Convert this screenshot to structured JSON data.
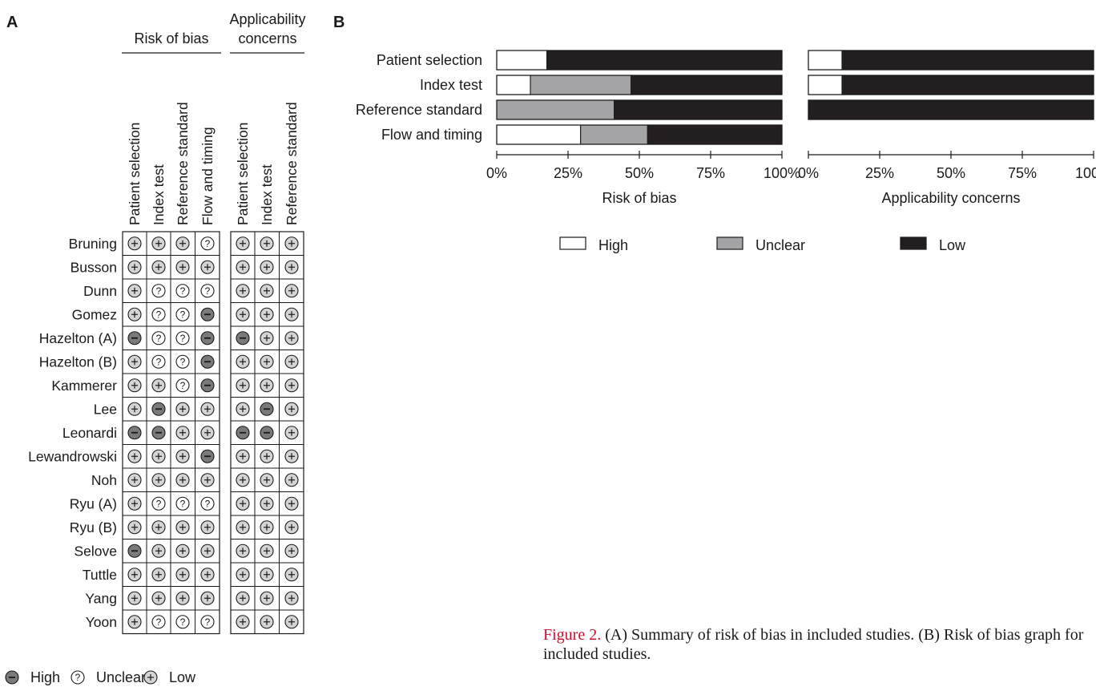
{
  "panel_a": {
    "label": "A",
    "group_rob": "Risk of bias",
    "group_app_line1": "Applicability",
    "group_app_line2": "concerns",
    "rob_columns": [
      "Patient selection",
      "Index test",
      "Reference standard",
      "Flow and timing"
    ],
    "app_columns": [
      "Patient selection",
      "Index test",
      "Reference standard"
    ],
    "studies": [
      {
        "name": "Bruning",
        "rob": [
          "L",
          "L",
          "L",
          "U"
        ],
        "app": [
          "L",
          "L",
          "L"
        ]
      },
      {
        "name": "Busson",
        "rob": [
          "L",
          "L",
          "L",
          "L"
        ],
        "app": [
          "L",
          "L",
          "L"
        ]
      },
      {
        "name": "Dunn",
        "rob": [
          "L",
          "U",
          "U",
          "U"
        ],
        "app": [
          "L",
          "L",
          "L"
        ]
      },
      {
        "name": "Gomez",
        "rob": [
          "L",
          "U",
          "U",
          "H"
        ],
        "app": [
          "L",
          "L",
          "L"
        ]
      },
      {
        "name": "Hazelton (A)",
        "rob": [
          "H",
          "U",
          "U",
          "H"
        ],
        "app": [
          "H",
          "L",
          "L"
        ]
      },
      {
        "name": "Hazelton (B)",
        "rob": [
          "L",
          "U",
          "U",
          "H"
        ],
        "app": [
          "L",
          "L",
          "L"
        ]
      },
      {
        "name": "Kammerer",
        "rob": [
          "L",
          "L",
          "U",
          "H"
        ],
        "app": [
          "L",
          "L",
          "L"
        ]
      },
      {
        "name": "Lee",
        "rob": [
          "L",
          "H",
          "L",
          "L"
        ],
        "app": [
          "L",
          "H",
          "L"
        ]
      },
      {
        "name": "Leonardi",
        "rob": [
          "H",
          "H",
          "L",
          "L"
        ],
        "app": [
          "H",
          "H",
          "L"
        ]
      },
      {
        "name": "Lewandrowski",
        "rob": [
          "L",
          "L",
          "L",
          "H"
        ],
        "app": [
          "L",
          "L",
          "L"
        ]
      },
      {
        "name": "Noh",
        "rob": [
          "L",
          "L",
          "L",
          "L"
        ],
        "app": [
          "L",
          "L",
          "L"
        ]
      },
      {
        "name": "Ryu (A)",
        "rob": [
          "L",
          "U",
          "U",
          "U"
        ],
        "app": [
          "L",
          "L",
          "L"
        ]
      },
      {
        "name": "Ryu (B)",
        "rob": [
          "L",
          "L",
          "L",
          "L"
        ],
        "app": [
          "L",
          "L",
          "L"
        ]
      },
      {
        "name": "Selove",
        "rob": [
          "H",
          "L",
          "L",
          "L"
        ],
        "app": [
          "L",
          "L",
          "L"
        ]
      },
      {
        "name": "Tuttle",
        "rob": [
          "L",
          "L",
          "L",
          "L"
        ],
        "app": [
          "L",
          "L",
          "L"
        ]
      },
      {
        "name": "Yang",
        "rob": [
          "L",
          "L",
          "L",
          "L"
        ],
        "app": [
          "L",
          "L",
          "L"
        ]
      },
      {
        "name": "Yoon",
        "rob": [
          "L",
          "U",
          "U",
          "U"
        ],
        "app": [
          "L",
          "L",
          "L"
        ]
      }
    ],
    "legend": [
      {
        "key": "H",
        "label": "High"
      },
      {
        "key": "U",
        "label": "Unclear"
      },
      {
        "key": "L",
        "label": "Low"
      }
    ]
  },
  "panel_b": {
    "label": "B",
    "legend": [
      {
        "key": "high",
        "label": "High"
      },
      {
        "key": "unclear",
        "label": "Unclear"
      },
      {
        "key": "low",
        "label": "Low"
      }
    ]
  },
  "colors": {
    "high_symbol": "#7a7a7a",
    "low_symbol": "#d4d4d4",
    "unclear_symbol": "#ffffff",
    "bar_high": "#ffffff",
    "bar_unclear": "#a4a4a6",
    "bar_low": "#231f20",
    "caption_figure_label": "#c8102e"
  },
  "chart_data": {
    "type": "bar",
    "orientation": "horizontal",
    "stacked": true,
    "categories": [
      "Patient selection",
      "Index test",
      "Reference standard",
      "Flow and timing"
    ],
    "tick_labels": [
      "0%",
      "25%",
      "50%",
      "75%",
      "100%"
    ],
    "xlim": [
      0,
      100
    ],
    "panels": [
      {
        "xlabel": "Risk of bias",
        "series": [
          {
            "name": "High",
            "values": [
              17.6,
              11.8,
              0,
              29.4
            ]
          },
          {
            "name": "Unclear",
            "values": [
              0,
              35.3,
              41.2,
              23.5
            ]
          },
          {
            "name": "Low",
            "values": [
              82.4,
              52.9,
              58.8,
              47.1
            ]
          }
        ]
      },
      {
        "xlabel": "Applicability concerns",
        "series": [
          {
            "name": "High",
            "values": [
              11.8,
              11.8,
              0
            ]
          },
          {
            "name": "Unclear",
            "values": [
              0,
              0,
              0
            ]
          },
          {
            "name": "Low",
            "values": [
              88.2,
              88.2,
              100
            ]
          }
        ]
      }
    ]
  },
  "caption": {
    "figure_label": "Figure 2.",
    "text": "(A) Summary of risk of bias in included studies. (B) Risk of bias graph for included studies."
  }
}
